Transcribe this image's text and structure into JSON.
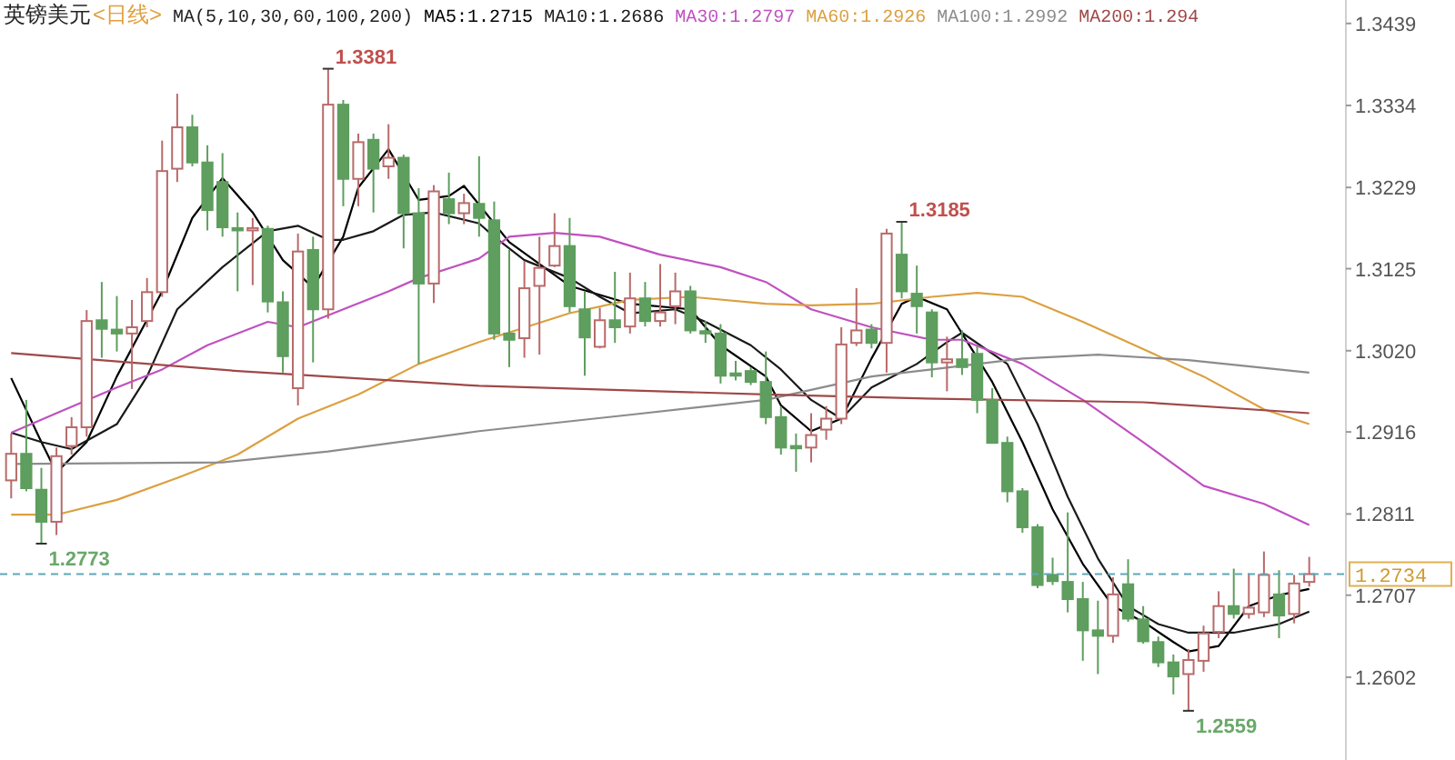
{
  "chart_data": {
    "type": "candlestick",
    "title": "英镑美元",
    "subtitle": "<日线>",
    "legend_title": "MA(5,10,30,60,100,200)",
    "legend": "top",
    "tick_labels": "y",
    "categories": [
      null,
      null,
      null,
      null,
      null,
      null,
      null,
      null,
      null,
      null,
      null,
      null,
      null,
      null,
      null,
      null,
      null,
      null,
      null,
      null,
      null,
      null,
      null,
      null,
      null,
      null,
      null,
      null,
      null,
      null,
      null,
      null,
      null,
      null,
      null,
      null,
      null,
      null,
      null,
      null,
      null,
      null,
      null,
      null,
      null,
      null,
      null,
      null,
      null,
      null,
      null,
      null,
      null,
      null,
      null,
      null,
      null,
      null,
      null,
      null,
      null,
      null,
      null,
      null,
      null,
      null,
      null,
      null,
      null,
      null,
      null,
      null,
      null,
      null,
      null,
      null,
      null,
      null,
      null,
      null,
      null,
      null,
      null,
      null,
      null,
      null,
      null
    ],
    "ohlc": [
      [
        1.2854,
        1.2914,
        1.2831,
        1.2888
      ],
      [
        1.2888,
        1.2957,
        1.284,
        1.2844
      ],
      [
        1.2842,
        1.287,
        1.2773,
        1.2801
      ],
      [
        1.2801,
        1.2896,
        1.2784,
        1.2885
      ],
      [
        1.2898,
        1.2935,
        1.2887,
        1.2922
      ],
      [
        1.2922,
        1.3072,
        1.291,
        1.3058
      ],
      [
        1.3059,
        1.3108,
        1.3011,
        1.3048
      ],
      [
        1.3047,
        1.309,
        1.3019,
        1.3042
      ],
      [
        1.3042,
        1.3085,
        1.2971,
        1.305
      ],
      [
        1.3058,
        1.3113,
        1.305,
        1.3095
      ],
      [
        1.3095,
        1.3289,
        1.3089,
        1.325
      ],
      [
        1.3253,
        1.3349,
        1.3236,
        1.3306
      ],
      [
        1.3306,
        1.3322,
        1.3256,
        1.3261
      ],
      [
        1.3261,
        1.3283,
        1.3174,
        1.32
      ],
      [
        1.3236,
        1.3273,
        1.3166,
        1.3178
      ],
      [
        1.3177,
        1.3197,
        1.3096,
        1.3174
      ],
      [
        1.3174,
        1.319,
        1.3104,
        1.3177
      ],
      [
        1.3176,
        1.318,
        1.3069,
        1.3083
      ],
      [
        1.3082,
        1.3096,
        1.2992,
        1.3013
      ],
      [
        1.2972,
        1.317,
        1.295,
        1.3147
      ],
      [
        1.3149,
        1.3166,
        1.3005,
        1.3073
      ],
      [
        1.3073,
        1.3381,
        1.3061,
        1.3335
      ],
      [
        1.3335,
        1.3341,
        1.3205,
        1.324
      ],
      [
        1.324,
        1.3298,
        1.3205,
        1.3287
      ],
      [
        1.329,
        1.3298,
        1.3197,
        1.3253
      ],
      [
        1.3256,
        1.331,
        1.324,
        1.3267
      ],
      [
        1.3267,
        1.3271,
        1.3151,
        1.3196
      ],
      [
        1.3196,
        1.3228,
        1.3003,
        1.3106
      ],
      [
        1.3106,
        1.3232,
        1.3081,
        1.3224
      ],
      [
        1.3214,
        1.3248,
        1.3182,
        1.3196
      ],
      [
        1.3196,
        1.3221,
        1.3182,
        1.3209
      ],
      [
        1.3208,
        1.3269,
        1.3166,
        1.319
      ],
      [
        1.3187,
        1.3211,
        1.3034,
        1.3042
      ],
      [
        1.3042,
        1.3149,
        1.2999,
        1.3034
      ],
      [
        1.3036,
        1.3135,
        1.3011,
        1.31
      ],
      [
        1.3103,
        1.3166,
        1.3015,
        1.3126
      ],
      [
        1.3129,
        1.3196,
        1.3127,
        1.3154
      ],
      [
        1.3154,
        1.319,
        1.3069,
        1.3077
      ],
      [
        1.3073,
        1.3096,
        1.2988,
        1.3037
      ],
      [
        1.3025,
        1.3075,
        1.3023,
        1.3059
      ],
      [
        1.3059,
        1.3121,
        1.303,
        1.305
      ],
      [
        1.3051,
        1.312,
        1.3042,
        1.3087
      ],
      [
        1.3087,
        1.3108,
        1.3051,
        1.3058
      ],
      [
        1.3058,
        1.3131,
        1.3051,
        1.3069
      ],
      [
        1.3077,
        1.312,
        1.3054,
        1.3096
      ],
      [
        1.3096,
        1.3103,
        1.3042,
        1.3046
      ],
      [
        1.3045,
        1.3058,
        1.303,
        1.3042
      ],
      [
        1.3042,
        1.3054,
        1.2978,
        1.2988
      ],
      [
        1.2991,
        1.3007,
        1.2982,
        1.2988
      ],
      [
        1.2994,
        1.2999,
        1.2976,
        1.298
      ],
      [
        1.298,
        1.3019,
        1.2926,
        1.2935
      ],
      [
        1.2935,
        1.2949,
        1.2887,
        1.2896
      ],
      [
        1.2898,
        1.2914,
        1.2865,
        1.2895
      ],
      [
        1.2896,
        1.294,
        1.2877,
        1.2912
      ],
      [
        1.2919,
        1.2949,
        1.2906,
        1.2933
      ],
      [
        1.2933,
        1.305,
        1.2926,
        1.3028
      ],
      [
        1.303,
        1.31,
        1.3026,
        1.3046
      ],
      [
        1.3047,
        1.3054,
        1.3023,
        1.303
      ],
      [
        1.303,
        1.3176,
        1.2992,
        1.317
      ],
      [
        1.3143,
        1.3185,
        1.3087,
        1.3096
      ],
      [
        1.3093,
        1.3129,
        1.3042,
        1.3077
      ],
      [
        1.3069,
        1.3073,
        1.2986,
        1.3005
      ],
      [
        1.3005,
        1.3038,
        1.2968,
        1.3009
      ],
      [
        1.3009,
        1.3046,
        1.2989,
        1.2999
      ],
      [
        1.3016,
        1.3026,
        1.294,
        1.2957
      ],
      [
        1.2957,
        1.2972,
        1.2901,
        1.2902
      ],
      [
        1.2902,
        1.291,
        1.2826,
        1.284
      ],
      [
        1.284,
        1.2844,
        1.2787,
        1.2794
      ],
      [
        1.2794,
        1.2798,
        1.2716,
        1.272
      ],
      [
        1.2733,
        1.2755,
        1.272,
        1.2725
      ],
      [
        1.2724,
        1.2813,
        1.2685,
        1.2702
      ],
      [
        1.2702,
        1.2724,
        1.2623,
        1.2662
      ],
      [
        1.2662,
        1.27,
        1.2606,
        1.2655
      ],
      [
        1.2655,
        1.273,
        1.2646,
        1.2708
      ],
      [
        1.2721,
        1.2753,
        1.2673,
        1.2677
      ],
      [
        1.2676,
        1.2693,
        1.2645,
        1.2648
      ],
      [
        1.2647,
        1.2654,
        1.2615,
        1.2621
      ],
      [
        1.2621,
        1.2631,
        1.258,
        1.2603
      ],
      [
        1.2606,
        1.2638,
        1.2559,
        1.2624
      ],
      [
        1.2623,
        1.2668,
        1.2609,
        1.2658
      ],
      [
        1.266,
        1.2712,
        1.2652,
        1.2693
      ],
      [
        1.2693,
        1.2741,
        1.2677,
        1.2683
      ],
      [
        1.2683,
        1.2735,
        1.2677,
        1.2691
      ],
      [
        1.2685,
        1.2763,
        1.2679,
        1.2733
      ],
      [
        1.2708,
        1.2739,
        1.2652,
        1.2681
      ],
      [
        1.2683,
        1.2733,
        1.2671,
        1.2722
      ],
      [
        1.2724,
        1.2756,
        1.2718,
        1.2734
      ]
    ],
    "series": [
      {
        "name": "MA5:1.2715",
        "type": "line",
        "color": "#000000",
        "values": [
          1.2985,
          null,
          1.2903,
          1.2864,
          null,
          1.2903,
          null,
          1.2987,
          null,
          null,
          1.3096,
          null,
          1.319,
          null,
          1.3241,
          null,
          1.3197,
          null,
          1.3136,
          null,
          1.3101,
          null,
          1.3166,
          1.3229,
          null,
          1.3278,
          null,
          1.3213,
          null,
          1.3218,
          1.3231,
          null,
          null,
          1.3159,
          null,
          null,
          null,
          1.3103,
          null,
          null,
          null,
          1.308,
          null,
          null,
          null,
          1.3073,
          null,
          1.3027,
          null,
          null,
          1.2987,
          1.295,
          null,
          1.2917,
          null,
          1.2933,
          null,
          1.301,
          null,
          1.308,
          1.3089,
          null,
          1.3073,
          null,
          null,
          1.298,
          null,
          1.2903,
          null,
          1.2817,
          null,
          1.2747,
          null,
          1.2693,
          null,
          1.2673,
          null,
          1.2647,
          1.2635,
          null,
          1.2642,
          null,
          1.2693,
          null,
          1.2707,
          null,
          1.2715
        ]
      },
      {
        "name": "MA10:1.2686",
        "type": "line",
        "color": "#1a1a1a",
        "values": [
          1.2915,
          null,
          1.2903,
          null,
          1.2894,
          null,
          null,
          1.2926,
          null,
          1.2987,
          null,
          1.3073,
          null,
          null,
          1.3127,
          null,
          null,
          1.3173,
          null,
          1.318,
          null,
          1.3162,
          1.3162,
          null,
          1.3173,
          null,
          1.3194,
          null,
          1.3197,
          null,
          null,
          1.3183,
          1.3166,
          null,
          1.3136,
          null,
          null,
          1.3113,
          null,
          1.3089,
          null,
          1.3068,
          null,
          null,
          1.3073,
          null,
          1.3057,
          null,
          null,
          1.3027,
          null,
          1.2996,
          null,
          1.2957,
          null,
          1.2933,
          null,
          1.2973,
          null,
          null,
          1.3003,
          null,
          1.3031,
          1.3043,
          null,
          null,
          1.3003,
          null,
          1.2926,
          null,
          1.2833,
          null,
          1.2754,
          null,
          1.2693,
          null,
          1.267,
          null,
          1.2659,
          null,
          null,
          1.2659,
          null,
          null,
          1.267,
          null,
          1.2686
        ]
      },
      {
        "name": "MA30:1.2797",
        "type": "line",
        "color": "#c050c0",
        "values": [
          1.2915,
          null,
          null,
          1.294,
          null,
          null,
          null,
          1.2973,
          null,
          null,
          1.2996,
          null,
          null,
          1.3027,
          null,
          null,
          null,
          1.3057,
          null,
          1.305,
          null,
          null,
          1.3073,
          null,
          null,
          1.3096,
          null,
          1.3113,
          null,
          null,
          null,
          1.3138,
          null,
          1.3166,
          null,
          null,
          1.3171,
          null,
          null,
          1.3166,
          null,
          null,
          null,
          1.3143,
          null,
          null,
          null,
          1.3127,
          null,
          null,
          1.3108,
          null,
          null,
          1.3073,
          null,
          null,
          null,
          1.305,
          null,
          null,
          null,
          1.3034,
          null,
          1.3034,
          null,
          null,
          null,
          1.3003,
          null,
          null,
          null,
          1.2957,
          null,
          null,
          null,
          1.2903,
          null,
          null,
          null,
          1.2847,
          null,
          null,
          null,
          1.2824,
          null,
          null,
          1.2797
        ]
      },
      {
        "name": "MA60:1.2926",
        "type": "line",
        "color": "#dca040",
        "values": [
          1.281,
          null,
          null,
          1.281,
          null,
          null,
          null,
          1.2829,
          null,
          null,
          null,
          1.2857,
          null,
          null,
          null,
          1.2887,
          null,
          null,
          null,
          1.2933,
          null,
          null,
          null,
          1.2964,
          null,
          null,
          null,
          1.3003,
          null,
          null,
          null,
          1.3031,
          null,
          null,
          null,
          null,
          null,
          1.3068,
          null,
          null,
          null,
          1.3085,
          null,
          null,
          null,
          1.3089,
          null,
          null,
          null,
          null,
          1.308,
          null,
          null,
          1.3078,
          null,
          null,
          null,
          1.308,
          null,
          null,
          null,
          1.3089,
          null,
          null,
          1.3094,
          null,
          null,
          1.3089,
          null,
          null,
          null,
          1.3057,
          null,
          null,
          null,
          1.3022,
          null,
          null,
          null,
          1.2987,
          null,
          null,
          null,
          1.2945,
          null,
          null,
          1.2926
        ]
      },
      {
        "name": "MA100:1.2992",
        "type": "line",
        "color": "#8c8c8c",
        "values": [
          1.2875,
          null,
          null,
          null,
          null,
          null,
          null,
          null,
          null,
          null,
          null,
          null,
          null,
          null,
          1.2877,
          null,
          null,
          null,
          null,
          null,
          null,
          1.2891,
          null,
          null,
          null,
          null,
          null,
          null,
          null,
          null,
          null,
          1.2917,
          null,
          null,
          null,
          null,
          null,
          null,
          null,
          null,
          null,
          1.2938,
          null,
          null,
          null,
          null,
          null,
          null,
          null,
          null,
          1.2957,
          null,
          null,
          null,
          null,
          null,
          null,
          1.2987,
          null,
          null,
          null,
          1.2996,
          null,
          null,
          null,
          null,
          null,
          1.301,
          null,
          null,
          null,
          null,
          1.3015,
          null,
          null,
          null,
          null,
          null,
          1.3008,
          null,
          null,
          null,
          null,
          null,
          null,
          null,
          1.2992
        ]
      },
      {
        "name": "MA200:1.294",
        "type": "line",
        "color": "#a04848",
        "values": [
          1.3017,
          null,
          null,
          null,
          null,
          null,
          null,
          null,
          null,
          null,
          null,
          null,
          null,
          null,
          null,
          1.2994,
          null,
          null,
          null,
          null,
          null,
          null,
          null,
          null,
          null,
          null,
          null,
          null,
          null,
          null,
          null,
          1.2975,
          null,
          null,
          null,
          null,
          null,
          null,
          null,
          null,
          null,
          null,
          null,
          null,
          null,
          null,
          null,
          null,
          null,
          null,
          1.2964,
          null,
          null,
          null,
          null,
          null,
          null,
          null,
          null,
          null,
          1.2959,
          null,
          null,
          null,
          null,
          null,
          null,
          null,
          null,
          null,
          null,
          null,
          null,
          null,
          null,
          1.2954,
          null,
          null,
          null,
          null,
          null,
          null,
          null,
          null,
          null,
          null,
          1.294
        ]
      }
    ],
    "ylim": [
      1.2496,
      1.3469
    ],
    "yticks": [
      1.3439,
      1.3334,
      1.3229,
      1.3125,
      {
        "value": 1.302,
        "label": "1.3020"
      },
      1.2916,
      1.2811,
      1.2707,
      1.2602
    ],
    "ref_lines": [
      {
        "axis": "y",
        "value": 1.2734,
        "label": "1.2734",
        "color": "#5fa8b8",
        "line_style": "dashed"
      }
    ],
    "annotations": [
      "1.3381",
      "1.3185",
      "1.2773",
      "1.2559"
    ]
  }
}
